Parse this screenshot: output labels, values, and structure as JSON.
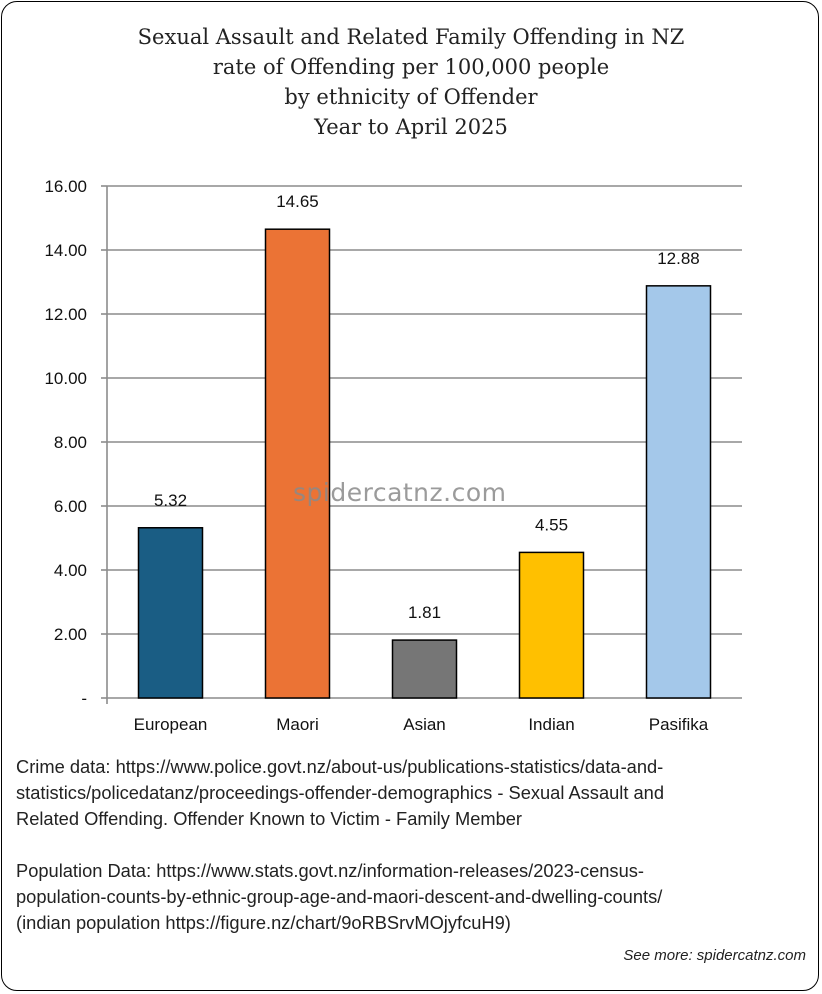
{
  "chart_data": {
    "type": "bar",
    "title_lines": [
      "Sexual Assault and Related Family Offending in NZ",
      "rate of Offending per 100,000 people",
      "by ethnicity of Offender",
      "Year to April 2025"
    ],
    "categories": [
      "European",
      "Maori",
      "Asian",
      "Indian",
      "Pasifika"
    ],
    "values": [
      5.32,
      14.65,
      1.81,
      4.55,
      12.88
    ],
    "data_labels": [
      "5.32",
      "14.65",
      "1.81",
      "4.55",
      "12.88"
    ],
    "colors": [
      "#1a5d84",
      "#eb7335",
      "#767676",
      "#ffc000",
      "#a4c8ea"
    ],
    "yticks": [
      0,
      2,
      4,
      6,
      8,
      10,
      12,
      14,
      16
    ],
    "ytick_labels": [
      "-",
      "2.00",
      "4.00",
      "6.00",
      "8.00",
      "10.00",
      "12.00",
      "14.00",
      "16.00"
    ],
    "ylim": [
      0,
      16
    ],
    "grid": true,
    "legend": "none",
    "xlabel": "",
    "ylabel": ""
  },
  "watermark": "spidercatnz.com",
  "notes": {
    "crime_lines": [
      "Crime data: https://www.police.govt.nz/about-us/publications-statistics/data-and-",
      "statistics/policedatanz/proceedings-offender-demographics - Sexual Assault and",
      "Related Offending. Offender Known to Victim - Family Member"
    ],
    "population_lines": [
      "Population Data: https://www.stats.govt.nz/information-releases/2023-census-",
      "population-counts-by-ethnic-group-age-and-maori-descent-and-dwelling-counts/",
      "(indian population https://figure.nz/chart/9oRBSrvMOjyfcuH9)"
    ]
  },
  "footer": {
    "see_more": "See more: spidercatnz.com"
  }
}
